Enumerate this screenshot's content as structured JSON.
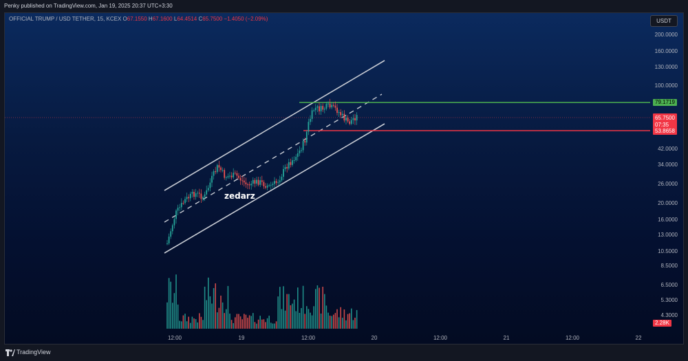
{
  "header": {
    "publisher_line": "Penky published on TradingView.com, Jan 19, 2025 20:37 UTC+3:30"
  },
  "legend": {
    "symbol": "OFFICIAL TRUMP / USD TETHER, 15, KCEX",
    "open_key": "O",
    "open_val": "67.1550",
    "high_key": "H",
    "high_val": "67.1600",
    "low_key": "L",
    "low_val": "64.4514",
    "close_key": "C",
    "close_val": "65.7500",
    "change": "−1.4050 (−2.09%)"
  },
  "price_axis": {
    "currency_button": "USDT",
    "labels": [
      "200.0000",
      "160.0000",
      "130.0000",
      "100.0000",
      "42.0000",
      "34.0000",
      "26.0000",
      "20.0000",
      "16.0000",
      "13.0000",
      "10.5000",
      "8.5000",
      "6.5000",
      "5.3000",
      "4.3000"
    ]
  },
  "levels": {
    "resistance": "79.1719",
    "support": "53.8658",
    "last_price": "65.7500",
    "countdown": "07:35",
    "volume": "2.28K"
  },
  "time_axis": {
    "labels": [
      "12:00",
      "19",
      "12:00",
      "20",
      "12:00",
      "21",
      "12:00",
      "22"
    ]
  },
  "watermark": "zedarz",
  "footer": {
    "brand": "TradingView"
  },
  "colors": {
    "up": "#26a69a",
    "down": "#ef5350",
    "resistance": "#4caf50",
    "support": "#f23645",
    "channel": "#c8ccd4"
  }
}
